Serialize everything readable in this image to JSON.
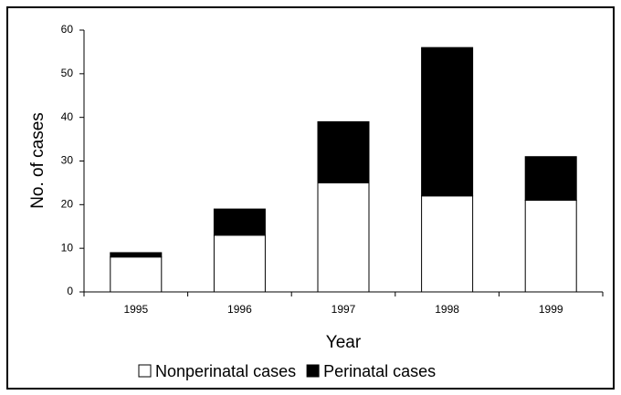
{
  "chart_data": {
    "type": "stacked_bar",
    "x_label": "Year",
    "y_label": "No. of cases",
    "categories": [
      "1995",
      "1996",
      "1997",
      "1998",
      "1999"
    ],
    "series": [
      {
        "name": "Nonperinatal cases",
        "color": "#ffffff",
        "values": [
          8,
          13,
          25,
          22,
          21
        ]
      },
      {
        "name": "Perinatal cases",
        "color": "#000000",
        "values": [
          1,
          6,
          14,
          34,
          10
        ]
      }
    ],
    "ylim": [
      0,
      60
    ],
    "yticks": [
      0,
      10,
      20,
      30,
      40,
      50,
      60
    ],
    "grid": false
  }
}
